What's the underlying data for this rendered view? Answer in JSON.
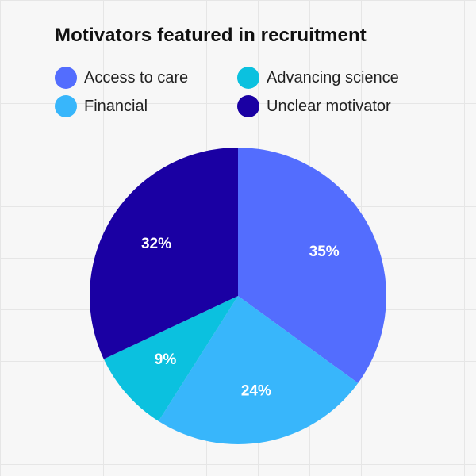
{
  "chart_data": {
    "type": "pie",
    "title": "Motivators featured in recruitment",
    "slices": [
      {
        "name": "Access to care",
        "value": 35,
        "label": "35%",
        "color": "#536dfe"
      },
      {
        "name": "Financial",
        "value": 24,
        "label": "24%",
        "color": "#38b6fb"
      },
      {
        "name": "Advancing science",
        "value": 9,
        "label": "9%",
        "color": "#0bc1df"
      },
      {
        "name": "Unclear motivator",
        "value": 32,
        "label": "32%",
        "color": "#1a00a3"
      }
    ],
    "legend": [
      {
        "name": "Access to care",
        "color": "#536dfe"
      },
      {
        "name": "Advancing science",
        "color": "#0bc1df"
      },
      {
        "name": "Financial",
        "color": "#38b6fb"
      },
      {
        "name": "Unclear motivator",
        "color": "#1a00a3"
      }
    ],
    "legend_position": "top"
  }
}
